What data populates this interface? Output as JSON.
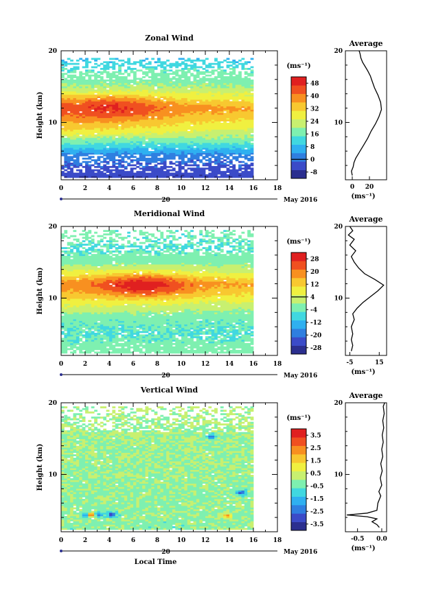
{
  "chart_data": [
    {
      "type": "heatmap",
      "title": "Zonal Wind",
      "ylabel": "Height (km)",
      "xlabel": "",
      "xlim": [
        0,
        18
      ],
      "ylim": [
        2,
        20
      ],
      "xticks": [
        "0",
        "2",
        "4",
        "6",
        "8",
        "10",
        "12",
        "14",
        "16",
        "18"
      ],
      "yticks": [
        "10",
        "20"
      ],
      "date_day": "20",
      "date_month": "May 2016",
      "colorbar": {
        "unit": "(ms⁻¹)",
        "ticks": [
          "48",
          "40",
          "32",
          "24",
          "16",
          "8",
          "0",
          "-8"
        ],
        "range": [
          -12,
          52
        ],
        "colors": [
          "#2b2f8f",
          "#3b4bc8",
          "#2f7fe0",
          "#2fb0f0",
          "#40d8e0",
          "#7ef0b0",
          "#c8f070",
          "#f0f040",
          "#f8c830",
          "#f89020",
          "#f05020",
          "#e02020"
        ]
      },
      "field": {
        "kind": "zonal",
        "valid_height_range": [
          2.3,
          19.0
        ],
        "valid_time_range": [
          0,
          16
        ],
        "layers": [
          {
            "height": 2.5,
            "value": -6
          },
          {
            "height": 4.0,
            "value": -2
          },
          {
            "height": 5.5,
            "value": 2
          },
          {
            "height": 7.0,
            "value": 14
          },
          {
            "height": 9.0,
            "value": 28
          },
          {
            "height": 10.5,
            "value": 34
          },
          {
            "height": 12.0,
            "value": 40
          },
          {
            "height": 13.5,
            "value": 30
          },
          {
            "height": 15.0,
            "value": 20
          },
          {
            "height": 17.0,
            "value": 16
          },
          {
            "height": 18.5,
            "value": 10
          }
        ],
        "jet": {
          "time": 4.5,
          "height": 12.0,
          "peak": 46
        }
      },
      "profile": {
        "title": "Average",
        "xlabel": "(ms⁻¹)",
        "xticks": [
          "0",
          "20"
        ],
        "yticks": [
          "10",
          "20"
        ],
        "xlim": [
          -8,
          40
        ],
        "points": [
          [
            0,
            2.6
          ],
          [
            -1,
            3.2
          ],
          [
            1,
            3.8
          ],
          [
            2,
            4.4
          ],
          [
            4,
            5.0
          ],
          [
            8,
            5.8
          ],
          [
            13,
            6.8
          ],
          [
            18,
            7.8
          ],
          [
            22,
            8.8
          ],
          [
            27,
            9.8
          ],
          [
            31,
            10.8
          ],
          [
            34,
            11.8
          ],
          [
            33,
            12.8
          ],
          [
            30,
            13.8
          ],
          [
            26,
            14.8
          ],
          [
            23,
            15.8
          ],
          [
            21,
            16.5
          ],
          [
            18,
            17.2
          ],
          [
            15,
            17.8
          ],
          [
            12,
            18.4
          ],
          [
            10,
            19.0
          ],
          [
            9,
            19.6
          ],
          [
            8,
            20.0
          ]
        ]
      }
    },
    {
      "type": "heatmap",
      "title": "Meridional Wind",
      "ylabel": "Height (km)",
      "xlabel": "",
      "xlim": [
        0,
        18
      ],
      "ylim": [
        2,
        20
      ],
      "xticks": [
        "0",
        "2",
        "4",
        "6",
        "8",
        "10",
        "12",
        "14",
        "16",
        "18"
      ],
      "yticks": [
        "10",
        "20"
      ],
      "date_day": "20",
      "date_month": "May 2016",
      "colorbar": {
        "unit": "(ms⁻¹)",
        "ticks": [
          "28",
          "20",
          "12",
          "4",
          "-4",
          "-12",
          "-20",
          "-28"
        ],
        "range": [
          -32,
          32
        ],
        "colors": [
          "#2b2f8f",
          "#3b4bc8",
          "#2f7fe0",
          "#2fb0f0",
          "#40d8e0",
          "#7ef0b0",
          "#c8f070",
          "#f0f040",
          "#f8c830",
          "#f89020",
          "#f05020",
          "#e02020"
        ]
      },
      "field": {
        "kind": "meridional",
        "valid_height_range": [
          2.3,
          19.5
        ],
        "valid_time_range": [
          0,
          16
        ],
        "layers": [
          {
            "height": 2.5,
            "value": -2
          },
          {
            "height": 5.0,
            "value": -6
          },
          {
            "height": 7.0,
            "value": -4
          },
          {
            "height": 9.0,
            "value": 4
          },
          {
            "height": 10.5,
            "value": 12
          },
          {
            "height": 12.0,
            "value": 18
          },
          {
            "height": 13.5,
            "value": 6
          },
          {
            "height": 15.0,
            "value": -2
          },
          {
            "height": 17.0,
            "value": -6
          },
          {
            "height": 19.0,
            "value": -4
          }
        ],
        "jet": {
          "time": 7.0,
          "height": 11.8,
          "peak": 30
        }
      },
      "profile": {
        "title": "Average",
        "xlabel": "(ms⁻¹)",
        "xticks": [
          "-5",
          "15"
        ],
        "yticks": [
          "10",
          "20"
        ],
        "xlim": [
          -8,
          20
        ],
        "points": [
          [
            -4,
            2.6
          ],
          [
            -3,
            3.4
          ],
          [
            -4,
            4.2
          ],
          [
            -3,
            5.0
          ],
          [
            -4,
            6.0
          ],
          [
            -2,
            7.0
          ],
          [
            -3,
            7.8
          ],
          [
            0,
            8.6
          ],
          [
            4,
            9.4
          ],
          [
            9,
            10.2
          ],
          [
            14,
            11.0
          ],
          [
            18,
            11.8
          ],
          [
            12,
            12.6
          ],
          [
            5,
            13.4
          ],
          [
            1,
            14.2
          ],
          [
            -2,
            15.0
          ],
          [
            -4,
            15.8
          ],
          [
            -1,
            16.6
          ],
          [
            -5,
            17.4
          ],
          [
            -2,
            18.2
          ],
          [
            -6,
            18.8
          ],
          [
            -3,
            19.4
          ],
          [
            -5,
            20.0
          ]
        ]
      }
    },
    {
      "type": "heatmap",
      "title": "Vertical Wind",
      "ylabel": "Height (km)",
      "xlabel": "Local Time",
      "xlim": [
        0,
        18
      ],
      "ylim": [
        2,
        20
      ],
      "xticks": [
        "0",
        "2",
        "4",
        "6",
        "8",
        "10",
        "12",
        "14",
        "16",
        "18"
      ],
      "yticks": [
        "10",
        "20"
      ],
      "date_day": "20",
      "date_month": "May 2016",
      "colorbar": {
        "unit": "(ms⁻¹)",
        "ticks": [
          "3.5",
          "2.5",
          "1.5",
          "0.5",
          "-0.5",
          "-1.5",
          "-2.5",
          "-3.5"
        ],
        "range": [
          -4,
          4
        ],
        "colors": [
          "#2b2f8f",
          "#3b4bc8",
          "#2f7fe0",
          "#2fb0f0",
          "#40d8e0",
          "#7ef0b0",
          "#c8f070",
          "#f0f040",
          "#f8c830",
          "#f89020",
          "#f05020",
          "#e02020"
        ]
      },
      "field": {
        "kind": "vertical",
        "valid_height_range": [
          2.3,
          19.5
        ],
        "valid_time_range": [
          0,
          16
        ],
        "layers": [
          {
            "height": 3.0,
            "value": -0.2
          },
          {
            "height": 10.0,
            "value": -0.1
          },
          {
            "height": 19.0,
            "value": 0.0
          }
        ],
        "blobs": [
          {
            "time": 2.2,
            "height": 4.4,
            "value": -3.5
          },
          {
            "time": 3.1,
            "height": 4.4,
            "value": -3.0
          },
          {
            "time": 4.2,
            "height": 4.4,
            "value": -3.5
          },
          {
            "time": 2.5,
            "height": 4.4,
            "value": 2.5
          },
          {
            "time": 15.0,
            "height": 7.5,
            "value": -3.0
          },
          {
            "time": 12.5,
            "height": 15.3,
            "value": -2.5
          },
          {
            "time": 13.8,
            "height": 4.2,
            "value": 2.0
          }
        ]
      },
      "profile": {
        "title": "Average",
        "xlabel": "(ms⁻¹)",
        "xticks": [
          "-0.5",
          "0.0"
        ],
        "yticks": [
          "10",
          "20"
        ],
        "xlim": [
          -0.75,
          0.1
        ],
        "points": [
          [
            -0.05,
            2.6
          ],
          [
            -0.1,
            3.0
          ],
          [
            -0.2,
            3.4
          ],
          [
            -0.1,
            3.8
          ],
          [
            -0.3,
            4.1
          ],
          [
            -0.72,
            4.35
          ],
          [
            -0.3,
            4.6
          ],
          [
            -0.1,
            5.0
          ],
          [
            -0.08,
            6.0
          ],
          [
            -0.02,
            7.0
          ],
          [
            -0.06,
            7.6
          ],
          [
            0.0,
            8.5
          ],
          [
            -0.03,
            9.5
          ],
          [
            0.01,
            10.5
          ],
          [
            -0.02,
            11.5
          ],
          [
            0.02,
            12.5
          ],
          [
            0.0,
            13.5
          ],
          [
            0.03,
            14.5
          ],
          [
            0.01,
            15.5
          ],
          [
            0.04,
            16.5
          ],
          [
            0.02,
            17.5
          ],
          [
            0.05,
            18.5
          ],
          [
            0.03,
            19.5
          ],
          [
            0.06,
            20.0
          ]
        ]
      }
    }
  ]
}
